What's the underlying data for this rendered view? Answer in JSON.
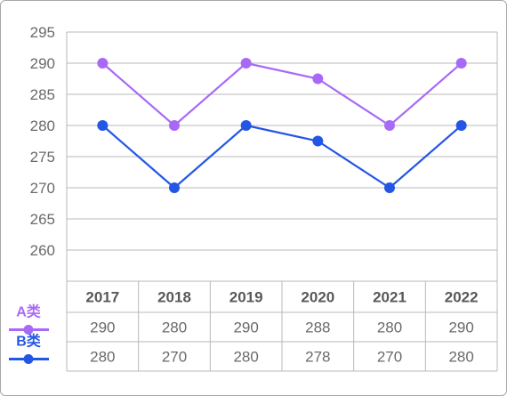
{
  "colors": {
    "series_a": "#a969f7",
    "series_b": "#2456e6",
    "grid": "#b9b9b9",
    "text": "#6a6a6a"
  },
  "chart_data": {
    "type": "line",
    "title": "",
    "xlabel": "",
    "ylabel": "",
    "categories": [
      "2017",
      "2018",
      "2019",
      "2020",
      "2021",
      "2022"
    ],
    "ylim": [
      255,
      295
    ],
    "yticks": [
      295,
      290,
      285,
      280,
      275,
      270,
      265,
      260
    ],
    "grid": true,
    "legend_position": "left of data table",
    "series": [
      {
        "name": "A类",
        "values": [
          290,
          280,
          290,
          287.5,
          280,
          290
        ]
      },
      {
        "name": "B类",
        "values": [
          280,
          270,
          280,
          277.5,
          270,
          280
        ]
      }
    ],
    "table": {
      "rows": [
        {
          "legend": "A类",
          "values": [
            "290",
            "280",
            "290",
            "288",
            "280",
            "290"
          ]
        },
        {
          "legend": "B类",
          "values": [
            "280",
            "270",
            "280",
            "278",
            "270",
            "280"
          ]
        }
      ]
    }
  }
}
